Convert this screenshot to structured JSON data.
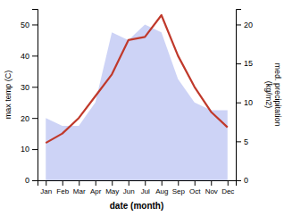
{
  "chart_data": {
    "type": "line",
    "categories": [
      "Jan",
      "Feb",
      "Mar",
      "Apr",
      "May",
      "Jun",
      "Jul",
      "Aug",
      "Sep",
      "Oct",
      "Nov",
      "Dec"
    ],
    "xlabel": "date (month)",
    "ylabel": "max temp (C)",
    "y2label": "med. precipitation\n(kg/m2)",
    "ylim": [
      0,
      55
    ],
    "yticks": [
      0,
      10,
      20,
      30,
      40,
      50
    ],
    "y2lim": [
      0,
      22
    ],
    "y2ticks": [
      0,
      5,
      10,
      15,
      20
    ],
    "series": [
      {
        "type": "area",
        "axis": "y2",
        "color": "#c8cef5",
        "values": [
          8,
          7,
          7,
          10,
          19,
          18,
          20,
          19,
          13,
          10,
          9,
          9
        ]
      },
      {
        "type": "line",
        "color": "#c0392b",
        "values": [
          12,
          15,
          20,
          27,
          34,
          45,
          46,
          53,
          40,
          30,
          22,
          17
        ]
      }
    ]
  }
}
